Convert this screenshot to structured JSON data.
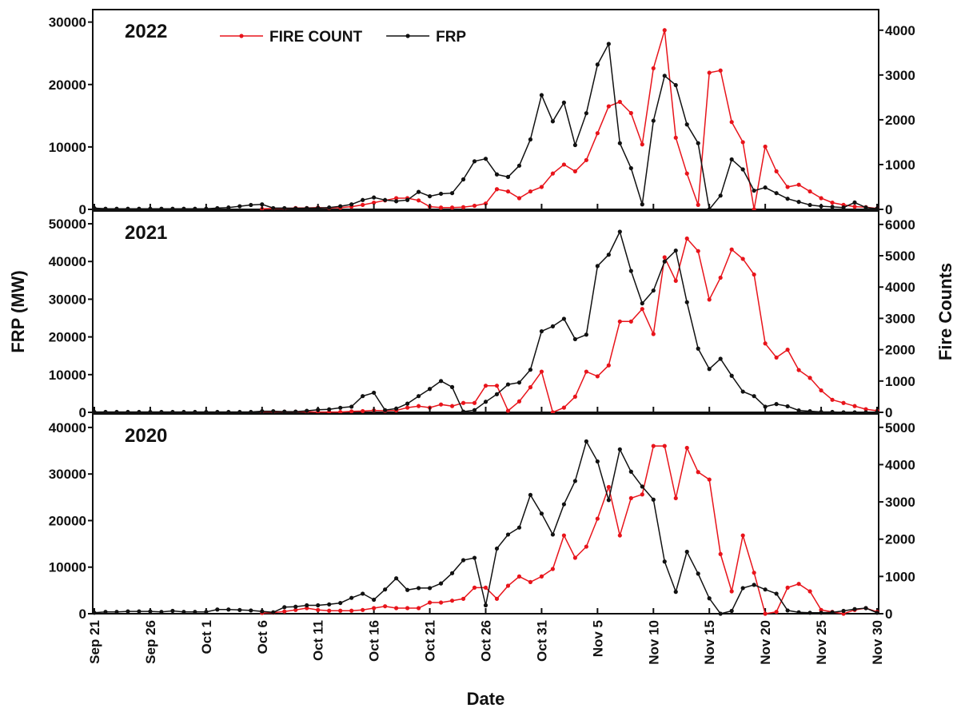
{
  "chart_data": [
    {
      "type": "line",
      "title": "2022",
      "legend": "top",
      "ylim": [
        0,
        32000
      ],
      "yticks": [
        0,
        10000,
        20000,
        30000
      ],
      "y2lim": [
        0,
        4460
      ],
      "y2ticks": [
        0,
        1000,
        2000,
        3000,
        4000
      ],
      "series": [
        {
          "name": "FIRE COUNT",
          "color": "#e8141b",
          "axis": "y2",
          "values": [
            null,
            null,
            null,
            null,
            null,
            null,
            null,
            null,
            null,
            null,
            null,
            null,
            null,
            null,
            null,
            10,
            20,
            20,
            30,
            30,
            40,
            30,
            40,
            60,
            100,
            150,
            200,
            250,
            250,
            200,
            60,
            40,
            40,
            50,
            80,
            130,
            450,
            400,
            250,
            400,
            500,
            800,
            1000,
            850,
            1100,
            1700,
            2300,
            2400,
            2150,
            1450,
            3150,
            4000,
            1600,
            800,
            100,
            3050,
            3100,
            1950,
            1500,
            0,
            1400,
            850,
            500,
            550,
            400,
            250,
            150,
            100,
            60,
            50,
            20
          ]
        },
        {
          "name": "FRP",
          "color": "#111111",
          "values": [
            200,
            100,
            100,
            100,
            100,
            100,
            100,
            100,
            100,
            100,
            100,
            200,
            300,
            500,
            700,
            800,
            200,
            200,
            150,
            200,
            200,
            300,
            500,
            800,
            1500,
            1900,
            1500,
            1300,
            1500,
            2800,
            2100,
            2500,
            2600,
            4800,
            7700,
            8100,
            5600,
            5200,
            7000,
            11200,
            18300,
            14100,
            17100,
            10300,
            15400,
            23200,
            26500,
            10600,
            6600,
            800,
            14200,
            21400,
            19900,
            13600,
            10600,
            0,
            2200,
            8000,
            6400,
            3000,
            3500,
            2600,
            1700,
            1200,
            700,
            500,
            400,
            300,
            1100,
            300,
            100
          ]
        }
      ]
    },
    {
      "type": "line",
      "title": "2021",
      "ylabel": "FRP (MW)",
      "y2label": "Fire Counts",
      "ylim": [
        0,
        53400
      ],
      "yticks": [
        0,
        10000,
        20000,
        30000,
        40000,
        50000
      ],
      "y2lim": [
        0,
        6430
      ],
      "y2ticks": [
        0,
        1000,
        2000,
        3000,
        4000,
        5000,
        6000
      ],
      "series": [
        {
          "color": "#e8141b",
          "axis": "y2",
          "values": [
            null,
            null,
            null,
            null,
            null,
            null,
            null,
            null,
            null,
            null,
            null,
            null,
            null,
            null,
            null,
            20,
            20,
            20,
            20,
            20,
            10,
            10,
            10,
            30,
            40,
            60,
            50,
            60,
            150,
            200,
            150,
            250,
            200,
            300,
            300,
            850,
            850,
            50,
            350,
            800,
            1300,
            0,
            150,
            500,
            1300,
            1150,
            1500,
            2900,
            2900,
            3300,
            2500,
            4950,
            4200,
            5550,
            5150,
            3600,
            4300,
            5200,
            4900,
            4400,
            2200,
            1750,
            2000,
            1350,
            1100,
            700,
            400,
            300,
            200,
            100,
            50
          ]
        },
        {
          "color": "#111111",
          "values": [
            100,
            100,
            100,
            100,
            100,
            100,
            100,
            100,
            100,
            100,
            100,
            100,
            100,
            100,
            100,
            300,
            300,
            200,
            200,
            400,
            700,
            800,
            1200,
            1500,
            4300,
            5200,
            600,
            1000,
            2300,
            4300,
            6200,
            8300,
            6700,
            200,
            600,
            2800,
            4800,
            7400,
            7900,
            11300,
            21500,
            22800,
            24800,
            19400,
            20600,
            38800,
            41800,
            47900,
            37500,
            28900,
            32300,
            40000,
            42900,
            29200,
            16900,
            11500,
            14200,
            9700,
            5500,
            4300,
            1500,
            2200,
            1600,
            500,
            300,
            100,
            100,
            0,
            0,
            0,
            0
          ]
        }
      ]
    },
    {
      "type": "line",
      "title": "2020",
      "xlabel": "Date",
      "categories": [
        "Sep 21",
        null,
        null,
        null,
        null,
        "Sep 26",
        null,
        null,
        null,
        null,
        "Oct 1",
        null,
        null,
        null,
        null,
        "Oct 6",
        null,
        null,
        null,
        null,
        "Oct 11",
        null,
        null,
        null,
        null,
        "Oct 16",
        null,
        null,
        null,
        null,
        "Oct 21",
        null,
        null,
        null,
        null,
        "Oct 26",
        null,
        null,
        null,
        null,
        "Oct 31",
        null,
        null,
        null,
        null,
        "Nov 5",
        null,
        null,
        null,
        null,
        "Nov 10",
        null,
        null,
        null,
        null,
        "Nov 15",
        null,
        null,
        null,
        null,
        "Nov 20",
        null,
        null,
        null,
        null,
        "Nov 25",
        null,
        null,
        null,
        null,
        "Nov 30"
      ],
      "ylim": [
        0,
        42900
      ],
      "yticks": [
        0,
        10000,
        20000,
        30000,
        40000
      ],
      "y2lim": [
        0,
        5360
      ],
      "y2ticks": [
        0,
        1000,
        2000,
        3000,
        4000,
        5000
      ],
      "series": [
        {
          "color": "#e8141b",
          "axis": "y2",
          "values": [
            null,
            null,
            null,
            null,
            null,
            null,
            null,
            null,
            null,
            null,
            null,
            null,
            null,
            null,
            null,
            20,
            30,
            60,
            100,
            150,
            100,
            80,
            80,
            80,
            100,
            150,
            200,
            150,
            150,
            150,
            300,
            300,
            350,
            400,
            700,
            700,
            400,
            750,
            1000,
            850,
            1000,
            1200,
            2100,
            1500,
            1800,
            2550,
            3400,
            2100,
            3100,
            3200,
            4500,
            4500,
            3100,
            4450,
            3800,
            3600,
            1600,
            600,
            2100,
            1100,
            0,
            50,
            700,
            800,
            600,
            100,
            50,
            0,
            100,
            150,
            50
          ]
        },
        {
          "color": "#111111",
          "values": [
            200,
            400,
            400,
            500,
            500,
            500,
            400,
            600,
            400,
            400,
            400,
            900,
            900,
            800,
            700,
            500,
            300,
            1400,
            1500,
            1800,
            1800,
            2000,
            2300,
            3400,
            4300,
            3000,
            5200,
            7600,
            5100,
            5500,
            5500,
            6500,
            8700,
            11500,
            12000,
            1800,
            14000,
            17000,
            18500,
            25500,
            21500,
            17000,
            23500,
            28500,
            37000,
            32700,
            24400,
            35300,
            30500,
            27300,
            24500,
            11200,
            4700,
            13300,
            8600,
            3300,
            0,
            600,
            5500,
            6200,
            5200,
            4300,
            700,
            300,
            200,
            200,
            300,
            600,
            1000,
            1200,
            200
          ]
        }
      ]
    }
  ]
}
